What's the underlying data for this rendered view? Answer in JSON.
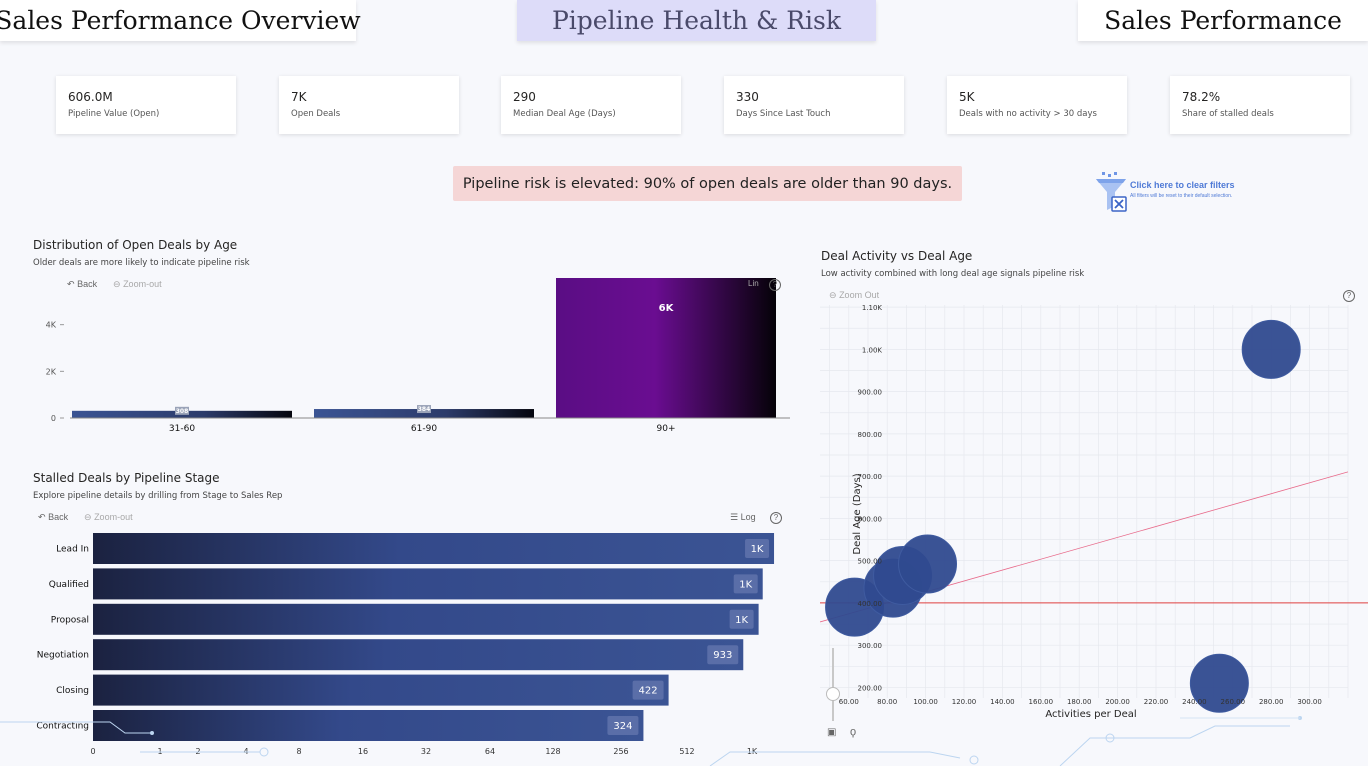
{
  "nav": {
    "left": "Sales Performance Overview",
    "center": "Pipeline Health & Risk",
    "right": "Sales Performance"
  },
  "kpis": [
    {
      "value": "606.0M",
      "label": "Pipeline Value (Open)"
    },
    {
      "value": "7K",
      "label": "Open Deals"
    },
    {
      "value": "290",
      "label": "Median Deal Age (Days)"
    },
    {
      "value": "330",
      "label": "Days Since Last Touch"
    },
    {
      "value": "5K",
      "label": "Deals with no activity > 30 days"
    },
    {
      "value": "78.2%",
      "label": "Share of stalled deals"
    }
  ],
  "alert": "Pipeline risk is elevated: 90% of open deals are older than 90 days.",
  "clear_filters": {
    "label": "Click here to clear filters",
    "sublabel": "All filters will be reset to their default selection."
  },
  "colors": {
    "bar_blue": "#3b5494",
    "bar_dark": "#1b2240",
    "bar_purple": "#6a0d91",
    "bubble": "#2f4a8f",
    "ref_line": "#e04040",
    "alert_bg": "#f5d6d6",
    "active_tab": "#dddcf9"
  },
  "visuals": {
    "age": {
      "title": "Distribution of Open Deals by Age",
      "subtitle": "Older deals are more likely to indicate pipeline risk",
      "back": "Back",
      "zoom": "Zoom-out",
      "scale": "Lin",
      "help": "?"
    },
    "stalled": {
      "title": "Stalled Deals by Pipeline Stage",
      "subtitle": "Explore pipeline details by drilling from Stage to Sales Rep",
      "back": "Back",
      "zoom": "Zoom-out",
      "scale": "Log",
      "help": "?"
    },
    "scatter": {
      "title": "Deal Activity vs Deal Age",
      "subtitle": "Low activity combined with long deal age signals pipeline risk",
      "zoom": "Zoom Out",
      "help": "?"
    }
  },
  "chart_data": [
    {
      "type": "bar",
      "title": "Distribution of Open Deals by Age",
      "categories": [
        "31-60",
        "61-90",
        "90+"
      ],
      "values": [
        308,
        384,
        6000
      ],
      "data_labels": [
        "308",
        "384",
        "6K"
      ],
      "ylim": [
        0,
        6000
      ],
      "yticks": [
        0,
        2000,
        4000
      ],
      "ytick_labels": [
        "0",
        "2K",
        "4K"
      ],
      "grid": false
    },
    {
      "type": "bar",
      "orientation": "horizontal",
      "title": "Stalled Deals by Pipeline Stage",
      "categories": [
        "Lead In",
        "Qualified",
        "Proposal",
        "Negotiation",
        "Closing",
        "Contracting"
      ],
      "values": [
        1300,
        1150,
        1100,
        933,
        422,
        324
      ],
      "data_labels": [
        "1K",
        "1K",
        "1K",
        "933",
        "422",
        "324"
      ],
      "xscale": "log",
      "xticks": [
        0,
        1,
        2,
        4,
        8,
        16,
        32,
        64,
        128,
        256,
        512,
        1024
      ],
      "xtick_labels": [
        "0",
        "1",
        "2",
        "4",
        "8",
        "16",
        "32",
        "64",
        "128",
        "256",
        "512",
        "1K"
      ],
      "grid": false
    },
    {
      "type": "scatter",
      "title": "Deal Activity vs Deal Age",
      "xlabel": "Activities per Deal",
      "ylabel": "Deal Age (Days)",
      "xlim": [
        45,
        320
      ],
      "ylim": [
        175,
        1105
      ],
      "xticks": [
        60,
        80,
        100,
        120,
        140,
        160,
        180,
        200,
        220,
        240,
        260,
        280,
        300
      ],
      "xtick_labels": [
        "60.00",
        "80.00",
        "100.00",
        "120.00",
        "140.00",
        "160.00",
        "180.00",
        "200.00",
        "220.00",
        "240.00",
        "260.00",
        "280.00",
        "300.00"
      ],
      "yticks": [
        200,
        300,
        400,
        500,
        600,
        700,
        800,
        900,
        1000,
        1100
      ],
      "ytick_labels": [
        "200.00",
        "300.00",
        "400.00",
        "500.00",
        "600.00",
        "700.00",
        "800.00",
        "900.00",
        "1.00K",
        "1.10K"
      ],
      "points": [
        {
          "x": 63,
          "y": 390
        },
        {
          "x": 83,
          "y": 435
        },
        {
          "x": 88,
          "y": 465
        },
        {
          "x": 101,
          "y": 492
        },
        {
          "x": 280,
          "y": 1000
        },
        {
          "x": 253,
          "y": 210
        }
      ],
      "reference_line_y": 400,
      "trend_line": {
        "x1": 45,
        "y1": 355,
        "x2": 320,
        "y2": 710
      },
      "grid": true
    }
  ]
}
